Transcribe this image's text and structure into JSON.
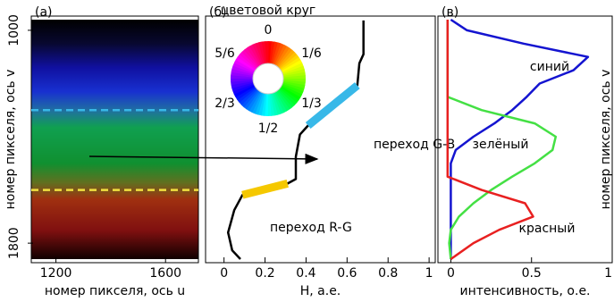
{
  "chart_data": [
    {
      "type": "image",
      "panel_label": "(а)",
      "x_label": "номер пикселя, ось u",
      "y_label": "номер пикселя, ось v",
      "xlim": [
        1110,
        1720
      ],
      "ylim": [
        960,
        1860
      ],
      "y_inverted": true,
      "xticks": [
        1200,
        1600
      ],
      "yticks": [
        1000,
        1800
      ],
      "lines": [
        {
          "v": 1300,
          "color": "#38b8e8"
        },
        {
          "v": 1600,
          "color": "#f0e040"
        }
      ]
    },
    {
      "type": "line",
      "panel_label": "(б)",
      "x_label": "H, а.е.",
      "xlim": [
        -0.09,
        1.03
      ],
      "ylim": [
        960,
        1860
      ],
      "y_inverted": true,
      "xticks": [
        0,
        0.2,
        0.4,
        0.6,
        0.8,
        1
      ],
      "series": [
        {
          "color": "#000000",
          "y": [
            963,
            1090,
            1124,
            1207,
            1358,
            1392,
            1475,
            1559,
            1576,
            1619,
            1676,
            1760,
            1827,
            1860
          ],
          "values": [
            0.68,
            0.68,
            0.66,
            0.65,
            0.41,
            0.37,
            0.35,
            0.35,
            0.31,
            0.09,
            0.05,
            0.02,
            0.04,
            0.08
          ]
        }
      ],
      "transitions": [
        {
          "label": "переход G-B",
          "color": "#38b8e8",
          "y": [
            1207,
            1358
          ],
          "values": [
            0.65,
            0.41
          ]
        },
        {
          "label": "переход R-G",
          "color": "#f5c800",
          "y": [
            1576,
            1619
          ],
          "values": [
            0.31,
            0.09
          ]
        }
      ],
      "wheel": {
        "title": "цветовой круг",
        "labels": [
          "0",
          "1/6",
          "1/3",
          "1/2",
          "2/3",
          "5/6"
        ]
      }
    },
    {
      "type": "line",
      "panel_label": "(в)",
      "x_label": "интенсивность, о.е.",
      "y_label": "номер пикселя, ось v",
      "xlim": [
        -0.08,
        1.0
      ],
      "ylim": [
        960,
        1860
      ],
      "y_inverted": true,
      "xticks": [
        0,
        0.5,
        1
      ],
      "y": [
        960,
        1000,
        1050,
        1100,
        1150,
        1200,
        1250,
        1300,
        1350,
        1400,
        1450,
        1500,
        1550,
        1600,
        1650,
        1700,
        1750,
        1800,
        1860
      ],
      "series": [
        {
          "name": "синий",
          "color": "#1414d0",
          "values": [
            0.0,
            0.1,
            0.45,
            0.85,
            0.76,
            0.55,
            0.47,
            0.38,
            0.27,
            0.14,
            0.03,
            0.0,
            0.0,
            0.0,
            0.0,
            0.0,
            0.0,
            0.0,
            0.0
          ]
        },
        {
          "name": "зелёный",
          "color": "#44e044",
          "values": [
            -0.02,
            -0.02,
            -0.02,
            -0.02,
            -0.02,
            -0.02,
            -0.02,
            0.19,
            0.52,
            0.65,
            0.63,
            0.52,
            0.38,
            0.25,
            0.14,
            0.05,
            0.0,
            -0.01,
            0.0
          ]
        },
        {
          "name": "красный",
          "color": "#e82020",
          "values": [
            -0.02,
            -0.02,
            -0.02,
            -0.02,
            -0.02,
            -0.02,
            -0.02,
            -0.02,
            -0.02,
            -0.02,
            -0.02,
            -0.02,
            -0.02,
            0.19,
            0.46,
            0.51,
            0.3,
            0.14,
            0.0
          ]
        }
      ]
    }
  ]
}
